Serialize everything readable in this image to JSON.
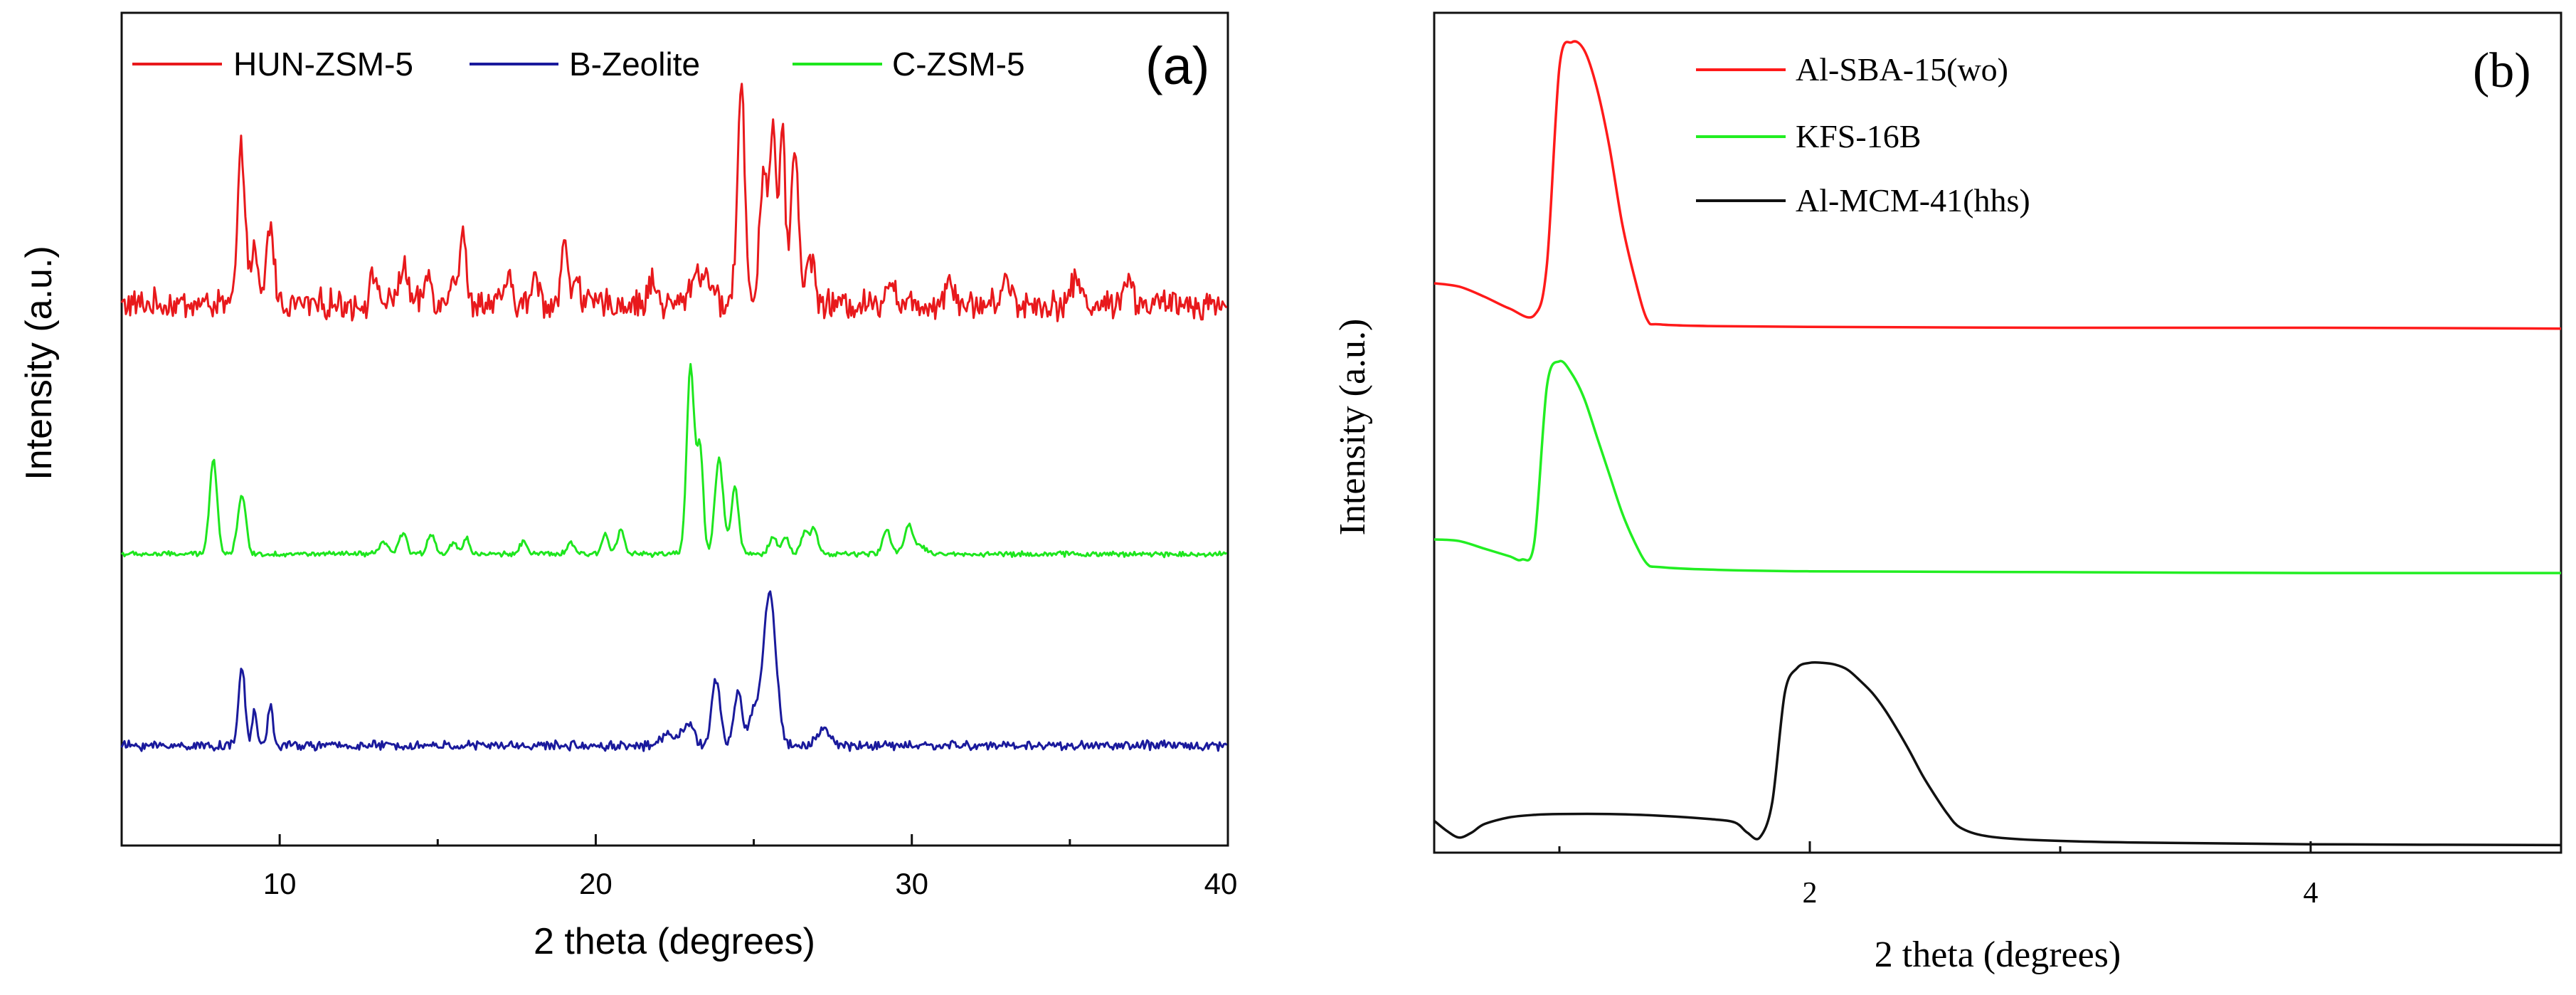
{
  "chart_data": [
    {
      "type": "line",
      "panel_label": "(a)",
      "xlabel": "2 theta (degrees)",
      "ylabel": "Intensity (a.u.)",
      "xlim": [
        5,
        40
      ],
      "ylim": [
        0,
        100
      ],
      "xticks": [
        10,
        20,
        30,
        40
      ],
      "grid": false,
      "legend_position": "top",
      "series": [
        {
          "name": "HUN-ZSM-5",
          "color": "#e8191c",
          "baseline": 65,
          "noise": 1.4,
          "x_end": 40,
          "peaks": [
            [
              8.8,
              18.5,
              0.12
            ],
            [
              9.2,
              6,
              0.1
            ],
            [
              9.7,
              9.5,
              0.12
            ],
            [
              13.0,
              3.5,
              0.12
            ],
            [
              13.9,
              4.5,
              0.14
            ],
            [
              14.7,
              3.5,
              0.12
            ],
            [
              15.5,
              4,
              0.12
            ],
            [
              15.8,
              9.5,
              0.08
            ],
            [
              17.2,
              3,
              0.12
            ],
            [
              18.1,
              3,
              0.12
            ],
            [
              19.0,
              7.5,
              0.1
            ],
            [
              19.4,
              4,
              0.1
            ],
            [
              21.8,
              3,
              0.12
            ],
            [
              23.2,
              4,
              0.2
            ],
            [
              23.6,
              3,
              0.12
            ],
            [
              24.6,
              26,
              0.12
            ],
            [
              25.3,
              16,
              0.12
            ],
            [
              25.6,
              21,
              0.1
            ],
            [
              25.9,
              20,
              0.1
            ],
            [
              26.3,
              19,
              0.12
            ],
            [
              26.8,
              6,
              0.12
            ],
            [
              29.3,
              3,
              0.15
            ],
            [
              31.2,
              3,
              0.15
            ],
            [
              33.0,
              3,
              0.15
            ],
            [
              35.2,
              3,
              0.15
            ],
            [
              36.8,
              3,
              0.15
            ]
          ]
        },
        {
          "name": "B-Zeolite",
          "color": "#1a1a9c",
          "baseline": 12,
          "noise": 0.45,
          "x_end": 40,
          "peaks": [
            [
              8.8,
              9.5,
              0.1
            ],
            [
              9.2,
              4,
              0.08
            ],
            [
              9.7,
              5,
              0.08
            ],
            [
              22.3,
              1.5,
              0.2
            ],
            [
              22.9,
              2.5,
              0.2
            ],
            [
              23.8,
              8,
              0.13
            ],
            [
              24.5,
              6.5,
              0.13
            ],
            [
              25.0,
              4,
              0.15
            ],
            [
              25.5,
              18.5,
              0.2
            ],
            [
              27.2,
              2,
              0.2
            ]
          ]
        },
        {
          "name": "C-ZSM-5",
          "color": "#1ee61e",
          "baseline": 35,
          "noise": 0.25,
          "x_end": 40,
          "peaks": [
            [
              7.9,
              11.5,
              0.12
            ],
            [
              8.8,
              7,
              0.13
            ],
            [
              13.3,
              1.5,
              0.12
            ],
            [
              13.9,
              2.5,
              0.12
            ],
            [
              14.8,
              2.5,
              0.12
            ],
            [
              15.5,
              1.5,
              0.1
            ],
            [
              15.9,
              2,
              0.1
            ],
            [
              17.7,
              1.5,
              0.12
            ],
            [
              19.2,
              1.5,
              0.1
            ],
            [
              20.3,
              2.5,
              0.1
            ],
            [
              20.8,
              3,
              0.12
            ],
            [
              23.0,
              22.5,
              0.12
            ],
            [
              23.3,
              12.5,
              0.1
            ],
            [
              23.9,
              11.5,
              0.13
            ],
            [
              24.4,
              8,
              0.12
            ],
            [
              25.6,
              2,
              0.12
            ],
            [
              26.0,
              2,
              0.12
            ],
            [
              26.6,
              2.5,
              0.12
            ],
            [
              26.9,
              3,
              0.12
            ],
            [
              29.2,
              3,
              0.12
            ],
            [
              29.9,
              3.5,
              0.14
            ],
            [
              30.3,
              1,
              0.15
            ]
          ]
        }
      ]
    },
    {
      "type": "line",
      "panel_label": "(b)",
      "xlabel": "2 theta (degrees)",
      "ylabel": "Intensity (a.u.)",
      "xlim": [
        0.5,
        5
      ],
      "ylim": [
        0,
        100
      ],
      "xticks": [
        2,
        4
      ],
      "grid": false,
      "legend_position": "top",
      "series": [
        {
          "name": "Al-SBA-15(wo)",
          "color": "#ff1a1a",
          "points": [
            [
              0.5,
              67.8
            ],
            [
              0.6,
              67.4
            ],
            [
              0.7,
              66.2
            ],
            [
              0.8,
              64.8
            ],
            [
              0.9,
              64.0
            ],
            [
              0.95,
              70
            ],
            [
              1.0,
              93.5
            ],
            [
              1.05,
              96.5
            ],
            [
              1.1,
              95.5
            ],
            [
              1.15,
              91
            ],
            [
              1.2,
              84
            ],
            [
              1.25,
              75
            ],
            [
              1.3,
              68.5
            ],
            [
              1.35,
              63.5
            ],
            [
              1.4,
              62.9
            ],
            [
              1.6,
              62.7
            ],
            [
              2.0,
              62.6
            ],
            [
              3.0,
              62.5
            ],
            [
              4.0,
              62.5
            ],
            [
              5.0,
              62.4
            ]
          ]
        },
        {
          "name": "KFS-16B",
          "color": "#22ee22",
          "points": [
            [
              0.5,
              37.3
            ],
            [
              0.6,
              37.1
            ],
            [
              0.7,
              36.2
            ],
            [
              0.8,
              35.3
            ],
            [
              0.85,
              34.9
            ],
            [
              0.9,
              37
            ],
            [
              0.95,
              55.5
            ],
            [
              1.0,
              58.5
            ],
            [
              1.05,
              57
            ],
            [
              1.1,
              54
            ],
            [
              1.15,
              49.5
            ],
            [
              1.2,
              45
            ],
            [
              1.25,
              40.5
            ],
            [
              1.3,
              37
            ],
            [
              1.35,
              34.4
            ],
            [
              1.4,
              34
            ],
            [
              1.6,
              33.7
            ],
            [
              2.0,
              33.5
            ],
            [
              3.0,
              33.4
            ],
            [
              4.0,
              33.3
            ],
            [
              5.0,
              33.3
            ]
          ]
        },
        {
          "name": "Al-MCM-41(hhs)",
          "color": "#111111",
          "points": [
            [
              0.5,
              3.8
            ],
            [
              0.55,
              2.6
            ],
            [
              0.6,
              1.8
            ],
            [
              0.65,
              2.4
            ],
            [
              0.7,
              3.4
            ],
            [
              0.8,
              4.2
            ],
            [
              0.9,
              4.5
            ],
            [
              1.0,
              4.6
            ],
            [
              1.2,
              4.6
            ],
            [
              1.4,
              4.4
            ],
            [
              1.6,
              4.0
            ],
            [
              1.7,
              3.6
            ],
            [
              1.75,
              2.4
            ],
            [
              1.8,
              1.8
            ],
            [
              1.85,
              6
            ],
            [
              1.9,
              19
            ],
            [
              1.95,
              22
            ],
            [
              2.0,
              22.6
            ],
            [
              2.05,
              22.6
            ],
            [
              2.1,
              22.4
            ],
            [
              2.15,
              21.8
            ],
            [
              2.2,
              20.5
            ],
            [
              2.25,
              19
            ],
            [
              2.3,
              17
            ],
            [
              2.35,
              14.6
            ],
            [
              2.4,
              12
            ],
            [
              2.45,
              9.2
            ],
            [
              2.5,
              6.8
            ],
            [
              2.55,
              4.6
            ],
            [
              2.6,
              3.0
            ],
            [
              2.7,
              2.0
            ],
            [
              2.9,
              1.5
            ],
            [
              3.3,
              1.2
            ],
            [
              4.0,
              1.0
            ],
            [
              5.0,
              0.9
            ]
          ]
        }
      ]
    }
  ]
}
